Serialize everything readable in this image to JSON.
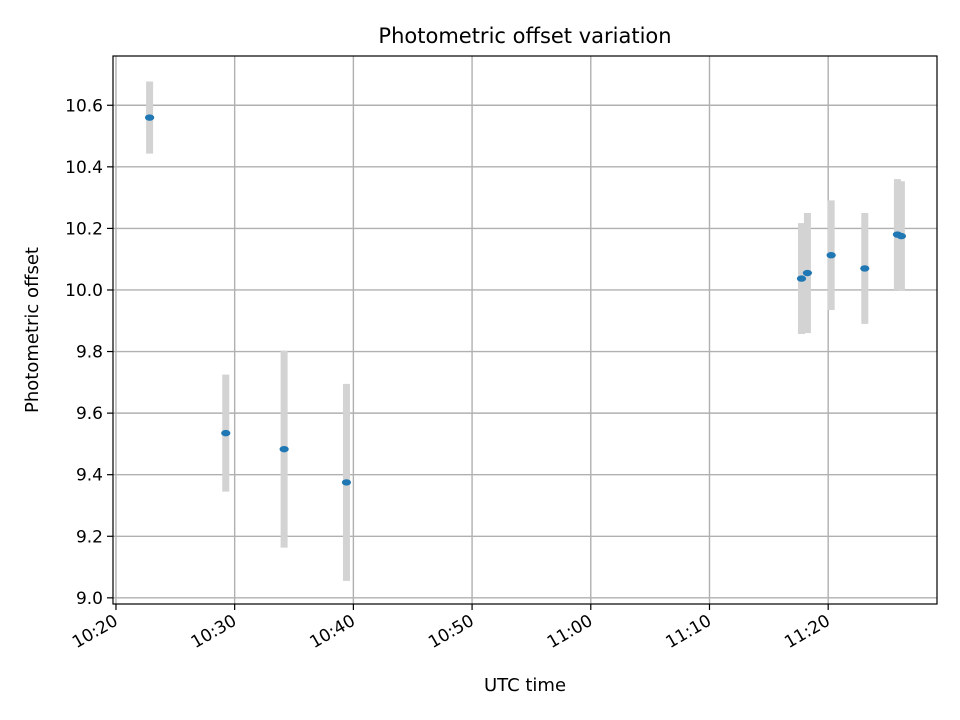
{
  "chart_data": {
    "type": "scatter",
    "title": "Photometric offset variation",
    "xlabel": "UTC time",
    "ylabel": "Photometric offset",
    "x_ticks": [
      "10:20",
      "10:30",
      "10:40",
      "10:50",
      "11:00",
      "11:10",
      "11:20"
    ],
    "y_ticks": [
      "9.0",
      "9.2",
      "9.4",
      "9.6",
      "9.8",
      "10.0",
      "10.2",
      "10.4",
      "10.6"
    ],
    "xlim": [
      "10:19:45",
      "11:29:10"
    ],
    "ylim": [
      8.98,
      10.76
    ],
    "grid": true,
    "errorbar_color": "#d3d3d3",
    "point_color": "#1f77b4",
    "points": [
      {
        "x": "10:22:50",
        "y": 10.56,
        "yerr": 0.117
      },
      {
        "x": "10:29:15",
        "y": 9.535,
        "yerr": 0.19
      },
      {
        "x": "10:34:10",
        "y": 9.483,
        "yerr": 0.32
      },
      {
        "x": "10:39:25",
        "y": 9.375,
        "yerr": 0.32
      },
      {
        "x": "11:17:45",
        "y": 10.037,
        "yerr": 0.18
      },
      {
        "x": "11:18:15",
        "y": 10.055,
        "yerr": 0.195
      },
      {
        "x": "11:20:15",
        "y": 10.113,
        "yerr": 0.178
      },
      {
        "x": "11:23:05",
        "y": 10.07,
        "yerr": 0.18
      },
      {
        "x": "11:25:50",
        "y": 10.18,
        "yerr": 0.18
      },
      {
        "x": "11:26:10",
        "y": 10.175,
        "yerr": 0.178
      }
    ]
  }
}
